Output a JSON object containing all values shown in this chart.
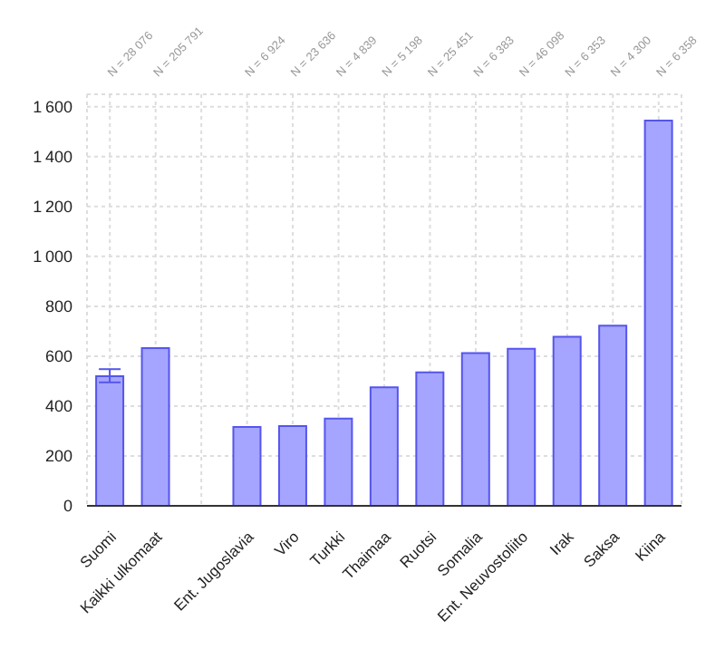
{
  "chart_data": {
    "type": "bar",
    "categories": [
      "Suomi",
      "Kaikki ulkomaat",
      null,
      "Ent. Jugoslavia",
      "Viro",
      "Turkki",
      "Thaimaa",
      "Ruotsi",
      "Somalia",
      "Ent. Neuvostoliito",
      "Irak",
      "Saksa",
      "Kiina"
    ],
    "values": [
      520,
      632,
      null,
      316,
      320,
      350,
      475,
      535,
      612,
      630,
      678,
      722,
      1545
    ],
    "errors": [
      [
        495,
        548
      ],
      null,
      null,
      null,
      null,
      null,
      null,
      null,
      null,
      null,
      null,
      null,
      null
    ],
    "color": "#a5a5ff",
    "ylim": [
      0,
      1650
    ],
    "yticks": [
      0,
      200,
      400,
      600,
      800,
      1000,
      1200,
      1400,
      1600
    ],
    "grid": true,
    "annotations": [
      "N = 28 076",
      "N = 205 791",
      "N = 6 924",
      "N = 23 636",
      "N = 4 839",
      "N = 5 198",
      "N = 25 451",
      "N = 6 383",
      "N = 46 098",
      "N = 6 353",
      "N = 4 300",
      "N = 6 358"
    ]
  }
}
